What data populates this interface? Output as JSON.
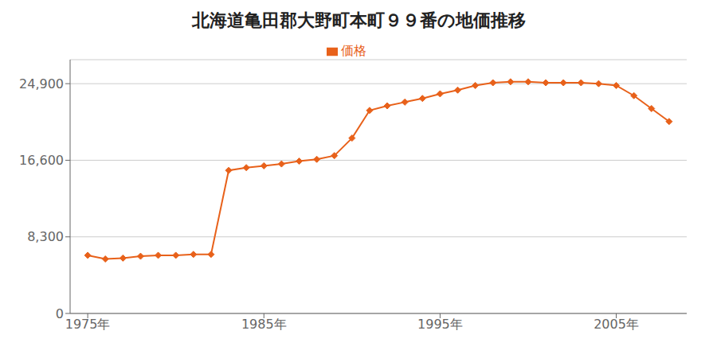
{
  "chart_data": {
    "type": "line",
    "title": "北海道亀田郡大野町本町９９番の地価推移",
    "x": [
      1975,
      1976,
      1977,
      1978,
      1979,
      1980,
      1981,
      1982,
      1983,
      1984,
      1985,
      1986,
      1987,
      1988,
      1989,
      1990,
      1991,
      1992,
      1993,
      1994,
      1995,
      1996,
      1997,
      1998,
      1999,
      2000,
      2001,
      2002,
      2003,
      2004,
      2005,
      2006,
      2007,
      2008
    ],
    "series": [
      {
        "name": "価格",
        "color": "#e8611a",
        "marker": "diamond",
        "values": [
          6300,
          5900,
          6000,
          6200,
          6300,
          6300,
          6400,
          6400,
          15500,
          15800,
          16000,
          16200,
          16500,
          16700,
          17100,
          19000,
          22000,
          22500,
          22900,
          23300,
          23800,
          24200,
          24700,
          25000,
          25100,
          25100,
          25000,
          25000,
          25000,
          24900,
          24700,
          23600,
          22200,
          20800
        ]
      }
    ],
    "xlim": [
      1974,
      2009
    ],
    "xticks": [
      {
        "value": 1975,
        "label": "1975年"
      },
      {
        "value": 1985,
        "label": "1985年"
      },
      {
        "value": 1995,
        "label": "1995年"
      },
      {
        "value": 2005,
        "label": "2005年"
      }
    ],
    "ylim": [
      0,
      27500
    ],
    "yticks": [
      0,
      {
        "value": 8300,
        "label": "8,300"
      },
      {
        "value": 16600,
        "label": "16,600"
      },
      {
        "value": 24900,
        "label": "24,900"
      }
    ],
    "grid": true,
    "legend": "top"
  }
}
